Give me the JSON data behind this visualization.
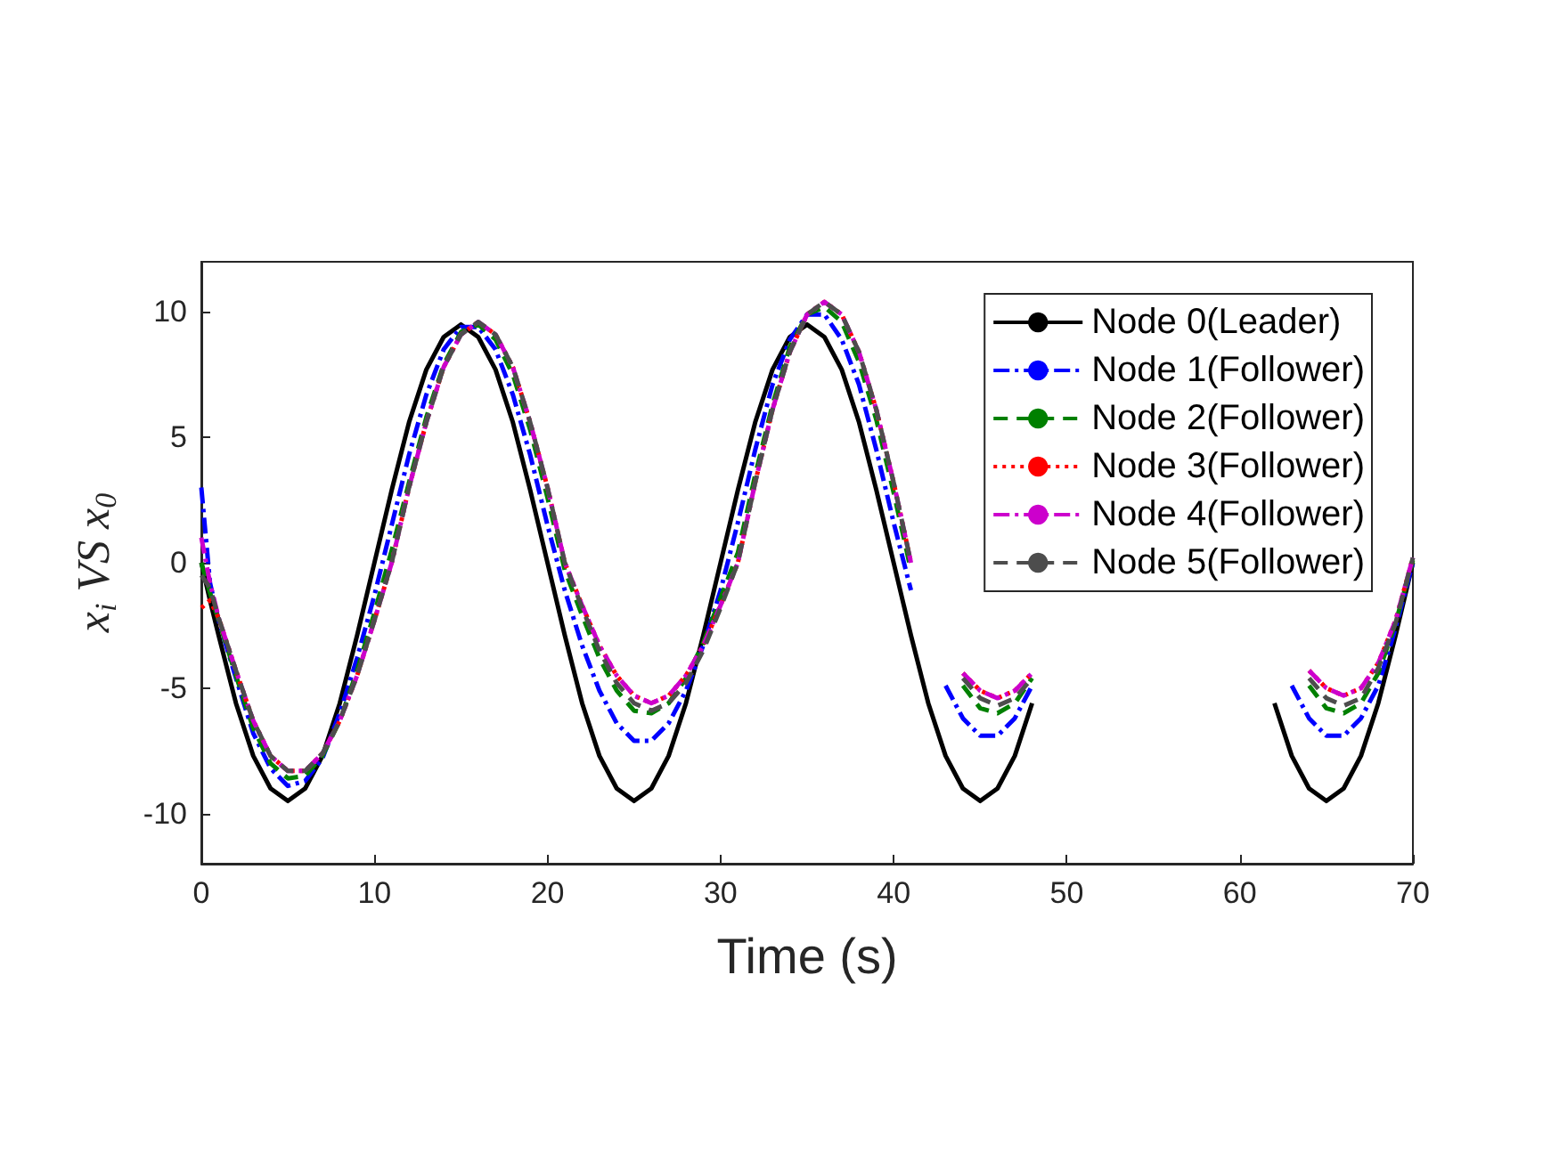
{
  "chart_data": {
    "type": "line",
    "xlabel": "Time (s)",
    "ylabel": "x$_{i}$ VS x$_{0}$",
    "x": [
      0,
      0.5,
      1,
      2,
      3,
      4,
      5,
      6,
      7,
      8,
      9,
      10,
      11,
      12,
      13,
      14,
      15,
      16,
      17,
      18,
      19,
      20,
      21,
      22,
      23,
      24,
      25,
      26,
      27,
      28,
      29,
      30,
      31,
      32,
      33,
      34,
      35,
      36,
      37,
      38,
      39,
      40,
      41,
      42,
      43,
      44,
      45,
      46,
      47,
      48,
      49,
      50,
      51,
      52,
      53,
      54,
      55,
      56,
      57,
      58,
      59,
      60,
      61,
      62,
      63,
      64,
      65,
      66,
      67,
      68,
      69,
      70
    ],
    "xlim": [
      0,
      70
    ],
    "xticks": [
      0,
      10,
      20,
      30,
      40,
      50,
      60,
      70
    ],
    "ylim": [
      -12,
      12
    ],
    "yticks": [
      -10,
      -5,
      0,
      5,
      10
    ],
    "grid": false,
    "legend": "top right",
    "series": [
      {
        "name": "Node 0(Leader)",
        "color": "#000000",
        "line_style": "solid",
        "values": [
          0,
          -1.5,
          -2.9,
          -5.6,
          -7.7,
          -9,
          -9.5,
          -9,
          -7.7,
          -5.6,
          -2.9,
          0,
          2.9,
          5.6,
          7.7,
          9,
          9.5,
          9,
          7.7,
          5.6,
          2.9,
          0,
          -2.9,
          -5.6,
          -7.7,
          -9,
          -9.5,
          -9,
          -7.7,
          -5.6,
          -2.9,
          0,
          2.9,
          5.6,
          7.7,
          9,
          9.5,
          9,
          7.7,
          5.6,
          2.9,
          0,
          -2.9,
          -5.6,
          -7.7,
          -9,
          -9.5,
          -9,
          -7.7,
          -5.6,
          null,
          null,
          null,
          null,
          null,
          null,
          null,
          null,
          null,
          null,
          null,
          null,
          null,
          -5.6,
          -7.7,
          -9,
          -9.5,
          -9,
          -7.7,
          -5.6,
          -2.9,
          0
        ]
      },
      {
        "name": "Node 1(Follower)",
        "color": "#0000ff",
        "line_style": "dashdot",
        "values": [
          3,
          -0.8,
          -2.3,
          -4.6,
          -6.8,
          -8.2,
          -8.9,
          -8.7,
          -7.8,
          -6,
          -3.8,
          -1.3,
          1.5,
          4.3,
          6.7,
          8.5,
          9.4,
          9.4,
          8.5,
          6.7,
          4.3,
          1.5,
          -1.1,
          -3.3,
          -5.1,
          -6.4,
          -7.1,
          -7.1,
          -6.4,
          -5.1,
          -3.3,
          -1.1,
          1.6,
          4.5,
          7.1,
          8.9,
          9.9,
          9.9,
          8.9,
          7.1,
          4.5,
          1.6,
          -1.1,
          null,
          -4.9,
          -6.2,
          -6.9,
          -6.9,
          -6.2,
          -4.9,
          null,
          null,
          null,
          null,
          null,
          null,
          null,
          null,
          null,
          null,
          null,
          null,
          null,
          null,
          -4.9,
          -6.2,
          -6.9,
          -6.9,
          -6.2,
          -4.9,
          -2.6,
          0
        ]
      },
      {
        "name": "Node 2(Follower)",
        "color": "#008000",
        "line_style": "dashed",
        "values": [
          0,
          -1.2,
          -2.3,
          -4.5,
          -6.6,
          -8,
          -8.6,
          -8.5,
          -7.7,
          -6.3,
          -4.3,
          -2,
          0.5,
          3.2,
          5.8,
          7.9,
          9.2,
          9.5,
          8.9,
          7.5,
          5.3,
          2.6,
          -0.3,
          -2.1,
          -3.8,
          -5.1,
          -5.9,
          -6,
          -5.6,
          -4.6,
          -3.2,
          -1.4,
          0.4,
          3.5,
          6.3,
          8.6,
          9.9,
          10.2,
          9.6,
          8,
          5.7,
          2.8,
          -0.3,
          null,
          null,
          -4.9,
          -5.8,
          -6,
          -5.6,
          -4.6,
          null,
          null,
          null,
          null,
          null,
          null,
          null,
          null,
          null,
          null,
          null,
          null,
          null,
          null,
          null,
          -4.9,
          -5.8,
          -6,
          -5.6,
          -4.4,
          -2.4,
          0.1
        ]
      },
      {
        "name": "Node 3(Follower)",
        "color": "#ff0000",
        "line_style": "dotted",
        "values": [
          -1.8,
          -1.5,
          -2.2,
          -4.3,
          -6.3,
          -7.7,
          -8.3,
          -8.3,
          -7.6,
          -6.3,
          -4.5,
          -2.3,
          0,
          3,
          5.6,
          7.8,
          9.1,
          9.6,
          9.1,
          7.8,
          5.6,
          3,
          0,
          -1.7,
          -3.3,
          -4.5,
          -5.3,
          -5.6,
          -5.3,
          -4.5,
          -3.3,
          -1.7,
          0,
          3.2,
          6.1,
          8.4,
          9.9,
          10.4,
          9.9,
          8.4,
          6.1,
          3.2,
          0,
          null,
          null,
          -4.4,
          -5.1,
          -5.4,
          -5.1,
          -4.4,
          null,
          null,
          null,
          null,
          null,
          null,
          null,
          null,
          null,
          null,
          null,
          null,
          null,
          null,
          null,
          -4.3,
          -5,
          -5.3,
          -5,
          -4,
          -2.3,
          0.2
        ]
      },
      {
        "name": "Node 4(Follower)",
        "color": "#cc00cc",
        "line_style": "dashdot",
        "values": [
          1,
          -0.8,
          -2.2,
          -4.3,
          -6.3,
          -7.7,
          -8.3,
          -8.3,
          -7.6,
          -6.3,
          -4.5,
          -2.3,
          0,
          3,
          5.6,
          7.8,
          9.1,
          9.6,
          9.1,
          7.8,
          5.6,
          3,
          0,
          -1.7,
          -3.3,
          -4.5,
          -5.3,
          -5.6,
          -5.3,
          -4.5,
          -3.3,
          -1.7,
          0,
          3.2,
          6.1,
          8.4,
          9.9,
          10.4,
          9.9,
          8.4,
          6.1,
          3.2,
          0,
          null,
          null,
          -4.4,
          -5.1,
          -5.4,
          -5.1,
          -4.4,
          null,
          null,
          null,
          null,
          null,
          null,
          null,
          null,
          null,
          null,
          null,
          null,
          null,
          null,
          null,
          -4.3,
          -5,
          -5.3,
          -5,
          -4,
          -2.3,
          0.2
        ]
      },
      {
        "name": "Node 5(Follower)",
        "color": "#4d4d4d",
        "line_style": "dashed",
        "values": [
          -0.5,
          -1,
          -2.2,
          -4.3,
          -6.3,
          -7.7,
          -8.3,
          -8.3,
          -7.6,
          -6.3,
          -4.5,
          -2.3,
          0,
          3,
          5.6,
          7.8,
          9.1,
          9.6,
          9.1,
          7.8,
          5.6,
          3,
          0,
          -1.8,
          -3.5,
          -4.8,
          -5.6,
          -5.9,
          -5.6,
          -4.8,
          -3.5,
          -1.8,
          0,
          3.2,
          6.1,
          8.4,
          9.9,
          10.4,
          9.9,
          8.4,
          6.1,
          3.2,
          0,
          null,
          null,
          -4.6,
          -5.4,
          -5.7,
          -5.4,
          -4.6,
          null,
          null,
          null,
          null,
          null,
          null,
          null,
          null,
          null,
          null,
          null,
          null,
          null,
          null,
          null,
          -4.6,
          -5.4,
          -5.7,
          -5.4,
          -4.2,
          -2.4,
          0.2
        ]
      }
    ]
  }
}
